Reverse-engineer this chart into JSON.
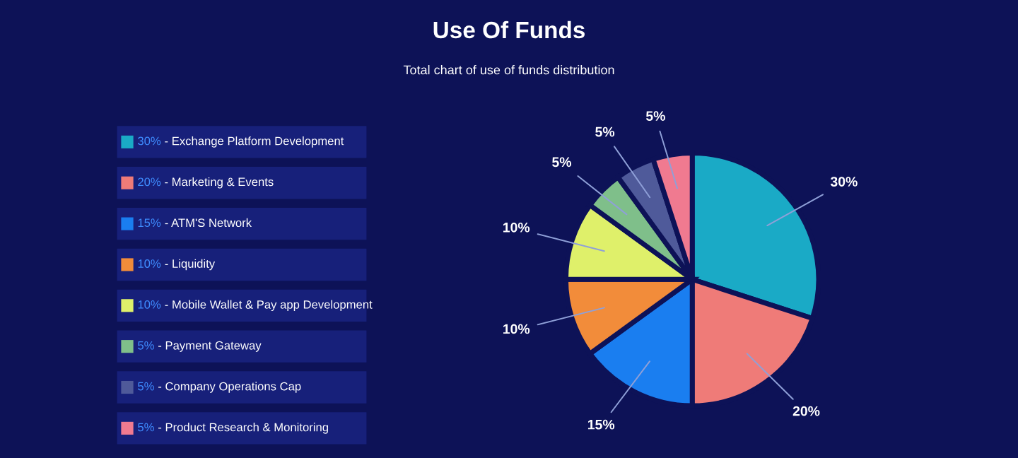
{
  "chart_data": {
    "type": "pie",
    "title": "Use Of Funds",
    "subtitle": "Total chart of use of funds distribution",
    "categories": [
      "Exchange Platform Development",
      "Marketing & Events",
      "ATM'S Network",
      "Liquidity",
      "Mobile Wallet & Pay app Development",
      "Payment Gateway",
      "Company Operations Cap",
      "Product Research & Monitoring"
    ],
    "values": [
      30,
      20,
      15,
      10,
      10,
      5,
      5,
      5
    ],
    "value_labels": [
      "30%",
      "20%",
      "15%",
      "10%",
      "10%",
      "5%",
      "5%",
      "5%"
    ],
    "colors": [
      "#1aaac6",
      "#ef7b78",
      "#1a7ef0",
      "#f28c3a",
      "#dff06a",
      "#7fbf8a",
      "#4f5a9a",
      "#f07a90"
    ],
    "legend": "left"
  }
}
